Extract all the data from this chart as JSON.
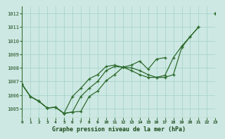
{
  "title": "Graphe pression niveau de la mer (hPa)",
  "bg_color": "#cde8e3",
  "grid_color": "#a8d4cc",
  "line_color": "#2d6b2d",
  "text_color": "#1a4a1a",
  "xlim": [
    0,
    23
  ],
  "ylim": [
    1004.3,
    1012.5
  ],
  "yticks": [
    1005,
    1006,
    1007,
    1008,
    1009,
    1010,
    1011,
    1012
  ],
  "xticks": [
    0,
    1,
    2,
    3,
    4,
    5,
    6,
    7,
    8,
    9,
    10,
    11,
    12,
    13,
    14,
    15,
    16,
    17,
    18,
    19,
    20,
    21,
    22,
    23
  ],
  "series": [
    [
      1006.8,
      1005.9,
      1005.55,
      1005.05,
      1005.1,
      1004.65,
      1004.75,
      1004.8,
      1005.9,
      1006.3,
      1007.05,
      1007.5,
      1008.05,
      1008.0,
      1007.8,
      1007.5,
      1007.3,
      1007.3,
      1007.5,
      1009.5,
      1010.3,
      1011.0,
      null,
      1012.0
    ],
    [
      1006.8,
      1005.9,
      1005.55,
      1005.05,
      1005.1,
      1004.65,
      1004.75,
      1005.9,
      1006.5,
      1007.0,
      1007.8,
      1008.1,
      1008.05,
      1008.2,
      1008.5,
      1007.9,
      1008.65,
      1008.75,
      null,
      null,
      null,
      null,
      null,
      1012.0
    ],
    [
      1006.8,
      1005.9,
      1005.55,
      1005.05,
      1005.1,
      1004.65,
      1005.9,
      1006.5,
      1007.2,
      1007.5,
      1008.1,
      1008.2,
      1008.05,
      1007.8,
      1007.5,
      1007.3,
      1007.3,
      1007.45,
      1008.75,
      1009.6,
      1010.3,
      1011.0,
      null,
      1012.0
    ]
  ]
}
